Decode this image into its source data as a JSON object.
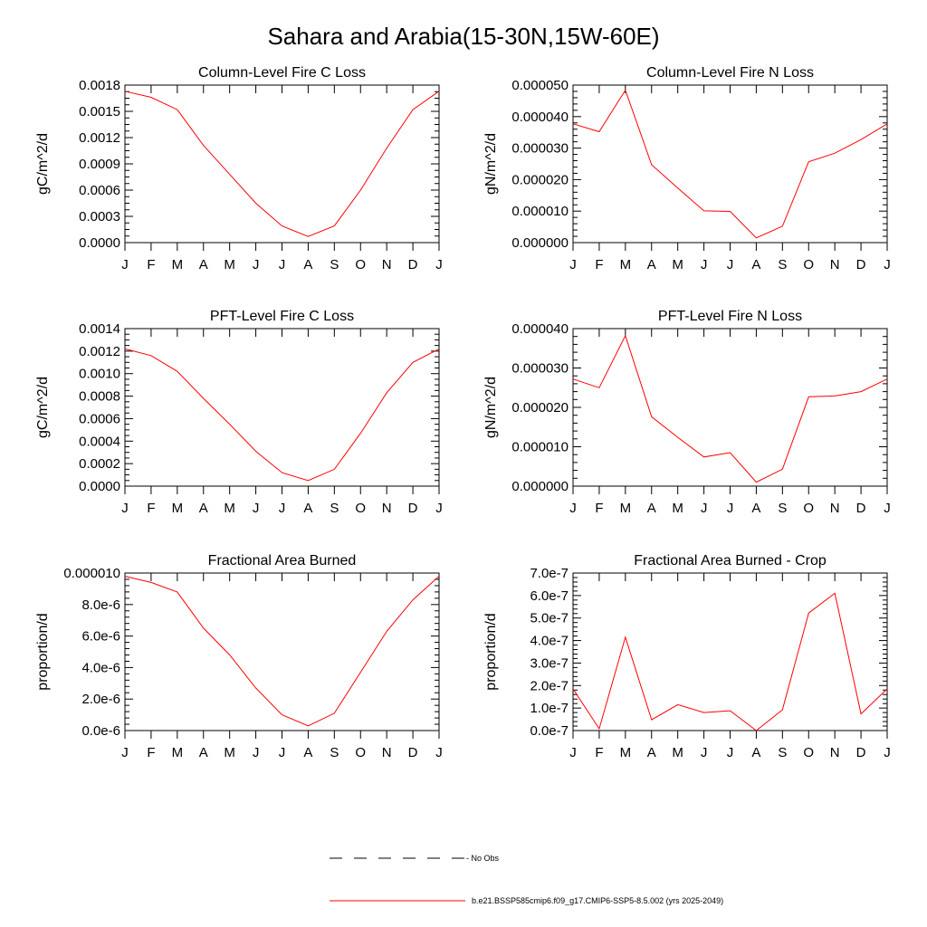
{
  "figure_title": "Sahara and Arabia(15-30N,15W-60E)",
  "legend": [
    {
      "label": "- No Obs",
      "style": "dashed",
      "color": "#000000"
    },
    {
      "label": "b.e21.BSSP585cmip6.f09_g17.CMIP6-SSP5-8.5.002 (yrs 2025-2049)",
      "style": "solid",
      "color": "#ff0000"
    }
  ],
  "chart_data": [
    {
      "type": "line",
      "title": "Column-Level Fire C Loss",
      "ylabel": "gC/m^2/d",
      "categories": [
        "J",
        "F",
        "M",
        "A",
        "M",
        "J",
        "J",
        "A",
        "S",
        "O",
        "N",
        "D",
        "J"
      ],
      "ylim": [
        0,
        0.0018
      ],
      "yticks": [
        "0.0000",
        "0.0003",
        "0.0006",
        "0.0009",
        "0.0012",
        "0.0015",
        "0.0018"
      ],
      "ytick_values": [
        0,
        0.0003,
        0.0006,
        0.0009,
        0.0012,
        0.0015,
        0.0018
      ],
      "minor_ticks": 3,
      "series": [
        {
          "color": "#ff0000",
          "values": [
            0.00173,
            0.00166,
            0.00152,
            0.00111,
            0.00078,
            0.00045,
            0.00019,
            7e-05,
            0.00019,
            0.0006,
            0.00108,
            0.00152,
            0.00173
          ]
        }
      ]
    },
    {
      "type": "line",
      "title": "Column-Level Fire N Loss",
      "ylabel": "gN/m^2/d",
      "categories": [
        "J",
        "F",
        "M",
        "A",
        "M",
        "J",
        "J",
        "A",
        "S",
        "O",
        "N",
        "D",
        "J"
      ],
      "ylim": [
        0,
        5e-05
      ],
      "yticks": [
        "0.000000",
        "0.000010",
        "0.000020",
        "0.000030",
        "0.000040",
        "0.000050"
      ],
      "ytick_values": [
        0,
        1e-05,
        2e-05,
        3e-05,
        4e-05,
        5e-05
      ],
      "minor_ticks": 4,
      "series": [
        {
          "color": "#ff0000",
          "values": [
            3.77e-05,
            3.52e-05,
            4.84e-05,
            2.47e-05,
            1.73e-05,
            1.01e-05,
            9.9e-06,
            1.5e-06,
            5.2e-06,
            2.57e-05,
            2.84e-05,
            3.27e-05,
            3.77e-05
          ]
        }
      ]
    },
    {
      "type": "line",
      "title": "PFT-Level Fire C Loss",
      "ylabel": "gC/m^2/d",
      "categories": [
        "J",
        "F",
        "M",
        "A",
        "M",
        "J",
        "J",
        "A",
        "S",
        "O",
        "N",
        "D",
        "J"
      ],
      "ylim": [
        0,
        0.0014
      ],
      "yticks": [
        "0.0000",
        "0.0002",
        "0.0004",
        "0.0006",
        "0.0008",
        "0.0010",
        "0.0012",
        "0.0014"
      ],
      "ytick_values": [
        0,
        0.0002,
        0.0004,
        0.0006,
        0.0008,
        0.001,
        0.0012,
        0.0014
      ],
      "minor_ticks": 3,
      "series": [
        {
          "color": "#ff0000",
          "values": [
            0.00122,
            0.00116,
            0.00102,
            0.00078,
            0.00055,
            0.00031,
            0.00012,
            5e-05,
            0.00015,
            0.00047,
            0.00083,
            0.0011,
            0.00122
          ]
        }
      ]
    },
    {
      "type": "line",
      "title": "PFT-Level Fire N Loss",
      "ylabel": "gN/m^2/d",
      "categories": [
        "J",
        "F",
        "M",
        "A",
        "M",
        "J",
        "J",
        "A",
        "S",
        "O",
        "N",
        "D",
        "J"
      ],
      "ylim": [
        0,
        4e-05
      ],
      "yticks": [
        "0.000000",
        "0.000010",
        "0.000020",
        "0.000030",
        "0.000040"
      ],
      "ytick_values": [
        0,
        1e-05,
        2e-05,
        3e-05,
        4e-05
      ],
      "minor_ticks": 4,
      "series": [
        {
          "color": "#ff0000",
          "values": [
            2.72e-05,
            2.5e-05,
            3.82e-05,
            1.76e-05,
            1.24e-05,
            7.4e-06,
            8.5e-06,
            1e-06,
            4.3e-06,
            2.27e-05,
            2.29e-05,
            2.4e-05,
            2.72e-05
          ]
        }
      ]
    },
    {
      "type": "line",
      "title": "Fractional Area Burned",
      "ylabel": "proportion/d",
      "categories": [
        "J",
        "F",
        "M",
        "A",
        "M",
        "J",
        "J",
        "A",
        "S",
        "O",
        "N",
        "D",
        "J"
      ],
      "ylim": [
        0,
        1e-05
      ],
      "yticks": [
        "0.0e-6",
        "2.0e-6",
        "4.0e-6",
        "6.0e-6",
        "8.0e-6",
        "0.000010"
      ],
      "ytick_values": [
        0,
        2e-06,
        4e-06,
        6e-06,
        8e-06,
        1e-05
      ],
      "minor_ticks": 4,
      "series": [
        {
          "color": "#ff0000",
          "values": [
            9.8e-06,
            9.4e-06,
            8.8e-06,
            6.5e-06,
            4.8e-06,
            2.7e-06,
            1e-06,
            3e-07,
            1.1e-06,
            3.7e-06,
            6.3e-06,
            8.3e-06,
            9.8e-06
          ]
        }
      ]
    },
    {
      "type": "line",
      "title": "Fractional Area Burned - Crop",
      "ylabel": "proportion/d",
      "categories": [
        "J",
        "F",
        "M",
        "A",
        "M",
        "J",
        "J",
        "A",
        "S",
        "O",
        "N",
        "D",
        "J"
      ],
      "ylim": [
        0,
        7e-07
      ],
      "yticks": [
        "0.0e-7",
        "1.0e-7",
        "2.0e-7",
        "3.0e-7",
        "4.0e-7",
        "5.0e-7",
        "6.0e-7",
        "7.0e-7"
      ],
      "ytick_values": [
        0,
        1e-07,
        2e-07,
        3e-07,
        4e-07,
        5e-07,
        6e-07,
        7e-07
      ],
      "minor_ticks": 4,
      "series": [
        {
          "color": "#ff0000",
          "values": [
            1.85e-07,
            8e-09,
            4.15e-07,
            4.8e-08,
            1.15e-07,
            8e-08,
            8.8e-08,
            0.0,
            9.2e-08,
            5.22e-07,
            6.1e-07,
            7.4e-08,
            1.85e-07
          ]
        }
      ]
    }
  ]
}
